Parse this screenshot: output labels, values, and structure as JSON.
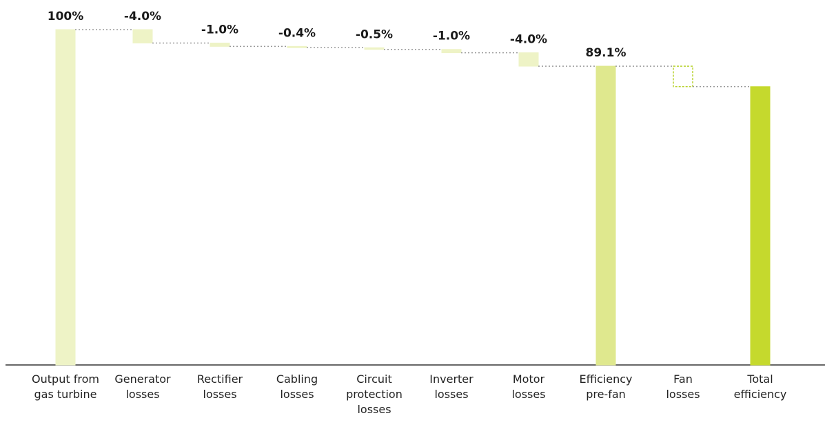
{
  "chart_data": {
    "type": "waterfall",
    "categories": [
      "Output from\ngas turbine",
      "Generator\nlosses",
      "Rectifier\nlosses",
      "Cabling\nlosses",
      "Circuit\nprotection\nlosses",
      "Inverter\nlosses",
      "Motor\nlosses",
      "Efficiency\npre-fan",
      "Fan\nlosses",
      "Total\nefficiency"
    ],
    "measure": [
      "absolute",
      "relative",
      "relative",
      "relative",
      "relative",
      "relative",
      "relative",
      "total",
      "relative",
      "total"
    ],
    "values": [
      100,
      -4.0,
      -1.0,
      -0.4,
      -0.5,
      -1.0,
      -4.0,
      89.1,
      -6.1,
      83.0
    ],
    "value_labels": [
      "100%",
      "-4.0%",
      "-1.0%",
      "-0.4%",
      "-0.5%",
      "-1.0%",
      "-4.0%",
      "89.1%",
      null,
      null
    ],
    "colors": [
      "#eef3c6",
      "#eef3c6",
      "#eef3c6",
      "#eef3c6",
      "#eef3c6",
      "#eef3c6",
      "#eef3c6",
      "#dfe88e",
      "#b8d22e",
      "#c5d92d"
    ],
    "ylim": [
      0,
      100
    ]
  }
}
